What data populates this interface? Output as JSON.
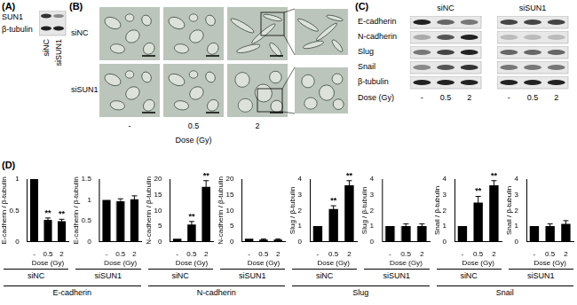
{
  "panels": {
    "A": {
      "label": "(A)",
      "rows": [
        "SUN1",
        "β-tubulin"
      ],
      "lanes": [
        "siNC",
        "siSUN1"
      ]
    },
    "B": {
      "label": "(B)",
      "rows": [
        "siNC",
        "siSUN1"
      ],
      "columns": [
        "-",
        "0.5",
        "2"
      ],
      "axis_label": "Dose (Gy)"
    },
    "C": {
      "label": "(C)",
      "groups": [
        "siNC",
        "siSUN1"
      ],
      "rows": [
        "E-cadherin",
        "N-cadherin",
        "Slug",
        "Snail",
        "β-tubulin"
      ],
      "lanes": [
        "-",
        "0.5",
        "2"
      ],
      "axis_label": "Dose (Gy)"
    },
    "D": {
      "label": "(D)",
      "groups": [
        "E-cadherin",
        "N-cadherin",
        "Slug",
        "Snail"
      ]
    }
  },
  "chart_data": [
    {
      "type": "bar",
      "subtitle": "siNC",
      "y_label": "E-cadherin / β-tubulin",
      "x_label": "Dose (Gy)",
      "categories": [
        "-",
        "0.5",
        "2"
      ],
      "values": [
        1,
        0.35,
        0.33
      ],
      "errors": [
        0,
        0.03,
        0.03
      ],
      "significance": [
        null,
        "**",
        "**"
      ],
      "color": "#000000",
      "ylim": [
        0,
        1
      ],
      "yticks": [
        0,
        0.5,
        1
      ]
    },
    {
      "type": "bar",
      "subtitle": "siSUN1",
      "y_label": "E-cadherin / β-tubulin",
      "x_label": "Dose (Gy)",
      "categories": [
        "-",
        "0.5",
        "2"
      ],
      "values": [
        1,
        0.97,
        1.02
      ],
      "errors": [
        0,
        0.06,
        0.08
      ],
      "significance": [
        null,
        null,
        null
      ],
      "color": "#000000",
      "ylim": [
        0,
        1.5
      ],
      "yticks": [
        0,
        0.5,
        1,
        1.5
      ]
    },
    {
      "type": "bar",
      "subtitle": "siNC",
      "y_label": "N-cadherin / β-tubulin",
      "x_label": "Dose (Gy)",
      "categories": [
        "-",
        "0.5",
        "2"
      ],
      "values": [
        1,
        5.5,
        17.5
      ],
      "errors": [
        0,
        1,
        2
      ],
      "significance": [
        null,
        "**",
        "**"
      ],
      "color": "#000000",
      "ylim": [
        0,
        20
      ],
      "yticks": [
        0,
        5,
        10,
        15,
        20
      ]
    },
    {
      "type": "bar",
      "subtitle": "siSUN1",
      "y_label": "N-cadherin / β-tubulin",
      "x_label": "Dose (Gy)",
      "categories": [
        "-",
        "0.5",
        "2"
      ],
      "values": [
        1,
        0.7,
        0.7
      ],
      "errors": [
        0,
        0.2,
        0.2
      ],
      "significance": [
        null,
        null,
        null
      ],
      "color": "#000000",
      "ylim": [
        0,
        20
      ],
      "yticks": [
        0,
        5,
        10,
        15,
        20
      ]
    },
    {
      "type": "bar",
      "subtitle": "siNC",
      "y_label": "Slug / β-tubulin",
      "x_label": "Dose (Gy)",
      "categories": [
        "-",
        "0.5",
        "2"
      ],
      "values": [
        1,
        2.1,
        3.6
      ],
      "errors": [
        0,
        0.2,
        0.3
      ],
      "significance": [
        null,
        "**",
        "**"
      ],
      "color": "#000000",
      "ylim": [
        0,
        4
      ],
      "yticks": [
        0,
        1,
        2,
        3,
        4
      ]
    },
    {
      "type": "bar",
      "subtitle": "siSUN1",
      "y_label": "Slug / β-tubulin",
      "x_label": "Dose (Gy)",
      "categories": [
        "-",
        "0.5",
        "2"
      ],
      "values": [
        1,
        1,
        1
      ],
      "errors": [
        0,
        0.15,
        0.15
      ],
      "significance": [
        null,
        null,
        null
      ],
      "color": "#000000",
      "ylim": [
        0,
        4
      ],
      "yticks": [
        0,
        1,
        2,
        3,
        4
      ]
    },
    {
      "type": "bar",
      "subtitle": "siNC",
      "y_label": "Snail / β-tubulin",
      "x_label": "Dose (Gy)",
      "categories": [
        "-",
        "0.5",
        "2"
      ],
      "values": [
        1,
        2.5,
        3.6
      ],
      "errors": [
        0,
        0.4,
        0.3
      ],
      "significance": [
        null,
        "**",
        "**"
      ],
      "color": "#000000",
      "ylim": [
        0,
        4
      ],
      "yticks": [
        0,
        1,
        2,
        3,
        4
      ]
    },
    {
      "type": "bar",
      "subtitle": "siSUN1",
      "y_label": "Snail / β-tubulin",
      "x_label": "Dose (Gy)",
      "categories": [
        "-",
        "0.5",
        "2"
      ],
      "values": [
        1,
        1,
        1.15
      ],
      "errors": [
        0,
        0.15,
        0.2
      ],
      "significance": [
        null,
        null,
        null
      ],
      "color": "#000000",
      "ylim": [
        0,
        4
      ],
      "yticks": [
        0,
        1,
        2,
        3,
        4
      ]
    }
  ]
}
